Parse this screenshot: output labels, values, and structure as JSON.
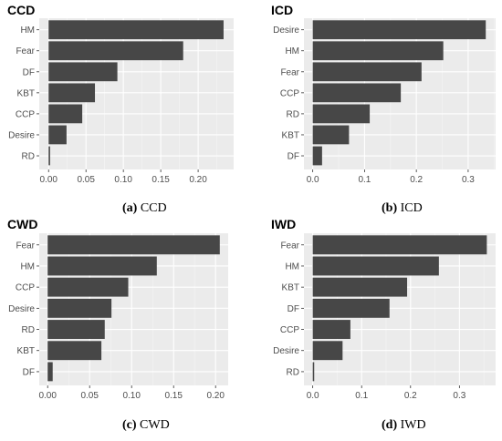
{
  "chart_data": [
    {
      "type": "bar",
      "orientation": "horizontal",
      "title": "CCD",
      "caption": {
        "tag": "(a)",
        "text": " CCD"
      },
      "categories": [
        "HM",
        "Fear",
        "DF",
        "KBT",
        "CCP",
        "Desire",
        "RD"
      ],
      "values": [
        0.234,
        0.18,
        0.092,
        0.062,
        0.045,
        0.024,
        0.002
      ],
      "xlim": [
        -0.0125,
        0.2475
      ],
      "xticks": [
        0.0,
        0.05,
        0.1,
        0.15,
        0.2
      ],
      "xtick_labels": [
        "0.00",
        "0.05",
        "0.10",
        "0.15",
        "0.20"
      ],
      "grid": true
    },
    {
      "type": "bar",
      "orientation": "horizontal",
      "title": "ICD",
      "caption": {
        "tag": "(b)",
        "text": " ICD"
      },
      "categories": [
        "Desire",
        "HM",
        "Fear",
        "CCP",
        "RD",
        "KBT",
        "DF"
      ],
      "values": [
        0.334,
        0.252,
        0.21,
        0.17,
        0.11,
        0.07,
        0.018
      ],
      "xlim": [
        -0.017,
        0.353
      ],
      "xticks": [
        0.0,
        0.1,
        0.2,
        0.3
      ],
      "xtick_labels": [
        "0.0",
        "0.1",
        "0.2",
        "0.3"
      ],
      "grid": true
    },
    {
      "type": "bar",
      "orientation": "horizontal",
      "title": "CWD",
      "caption": {
        "tag": "(c)",
        "text": " CWD"
      },
      "categories": [
        "Fear",
        "HM",
        "CCP",
        "Desire",
        "RD",
        "KBT",
        "DF"
      ],
      "values": [
        0.205,
        0.13,
        0.096,
        0.076,
        0.068,
        0.064,
        0.006
      ],
      "xlim": [
        -0.01,
        0.215
      ],
      "xticks": [
        0.0,
        0.05,
        0.1,
        0.15,
        0.2
      ],
      "xtick_labels": [
        "0.00",
        "0.05",
        "0.10",
        "0.15",
        "0.20"
      ],
      "grid": true
    },
    {
      "type": "bar",
      "orientation": "horizontal",
      "title": "IWD",
      "caption": {
        "tag": "(d)",
        "text": " IWD"
      },
      "categories": [
        "Fear",
        "HM",
        "KBT",
        "DF",
        "CCP",
        "Desire",
        "RD"
      ],
      "values": [
        0.356,
        0.258,
        0.193,
        0.157,
        0.077,
        0.061,
        0.003
      ],
      "xlim": [
        -0.018,
        0.374
      ],
      "xticks": [
        0.0,
        0.1,
        0.2,
        0.3
      ],
      "xtick_labels": [
        "0.0",
        "0.1",
        "0.2",
        "0.3"
      ],
      "grid": true
    }
  ]
}
